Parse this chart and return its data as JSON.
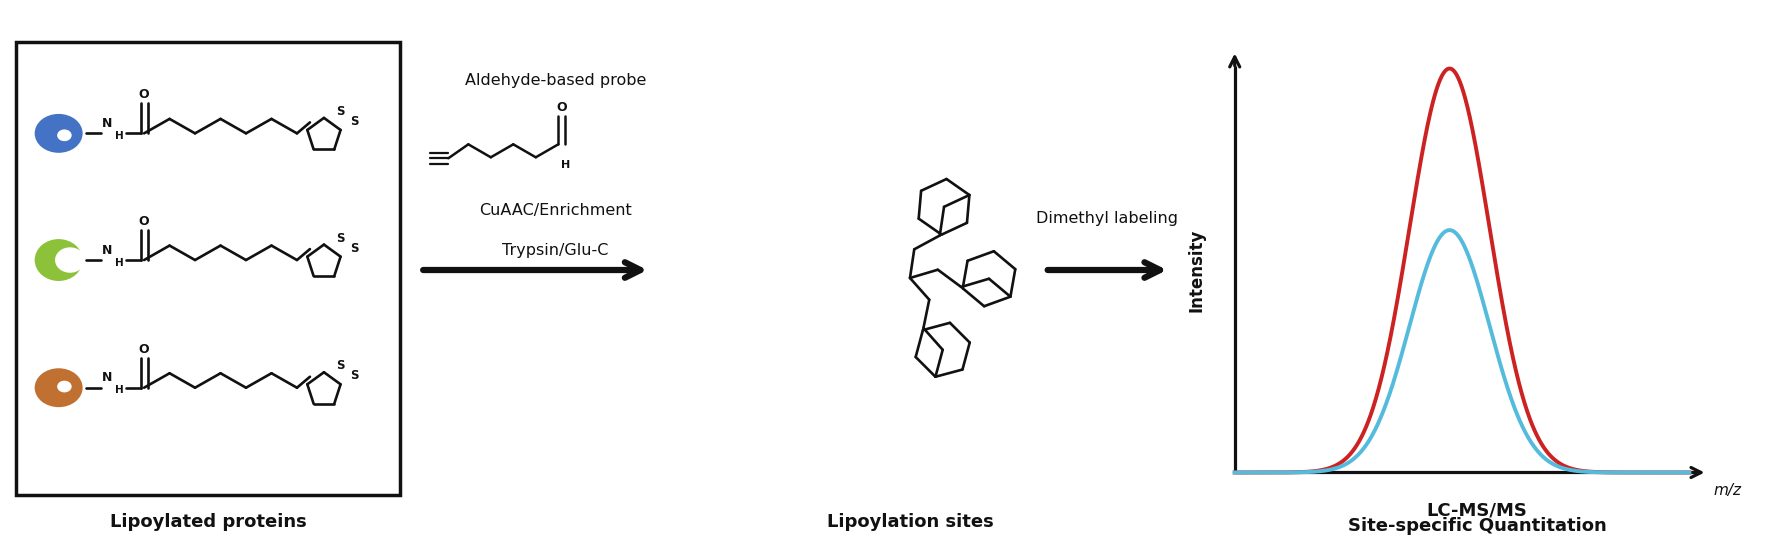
{
  "bg_color": "#ffffff",
  "labels": {
    "lipoylated_proteins": "Lipoylated proteins",
    "lipoylation_sites": "Lipoylation sites",
    "site_specific": "Site-specific Quantitation",
    "lc_ms": "LC-MS/MS",
    "mz": "m/z",
    "intensity": "Intensity",
    "aldehyde_probe": "Aldehyde-based probe",
    "cuaac": "CuAAC/Enrichment",
    "trypsin": "Trypsin/Glu-C",
    "dimethyl": "Dimethyl labeling"
  },
  "colors": {
    "blue_protein": "#4472C4",
    "green_protein": "#8CC23A",
    "brown_protein": "#C07030",
    "red_peak": "#CC2222",
    "cyan_peak": "#55BBDD",
    "black": "#111111",
    "box_bg": "#ffffff"
  },
  "peak_red_amplitude": 1.0,
  "peak_cyan_amplitude": 0.6,
  "peak_sigma": 0.4
}
